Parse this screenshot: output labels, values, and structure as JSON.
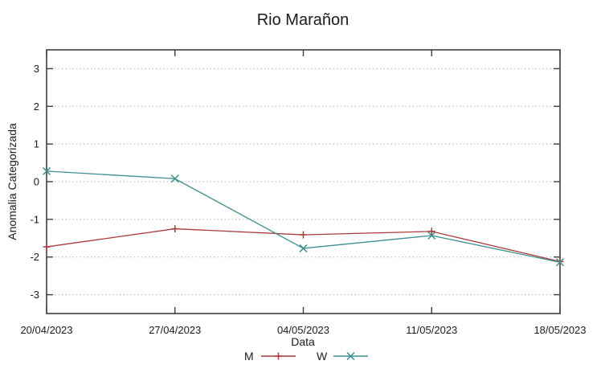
{
  "title": "Rio Marañon",
  "chart_data": {
    "type": "line",
    "title": "Rio Marañon",
    "xlabel": "Data",
    "ylabel": "Anomalia Categorizada",
    "categories": [
      "20/04/2023",
      "27/04/2023",
      "04/05/2023",
      "11/05/2023",
      "18/05/2023"
    ],
    "series": [
      {
        "name": "M",
        "color": "#a93c3a",
        "marker": "plus",
        "values": [
          -1.73,
          -1.25,
          -1.41,
          -1.32,
          -2.12
        ]
      },
      {
        "name": "W",
        "color": "#3d8e8e",
        "marker": "x",
        "values": [
          0.28,
          0.08,
          -1.77,
          -1.43,
          -2.14
        ]
      }
    ],
    "ylim": [
      -3.5,
      3.5
    ],
    "yticks": [
      3,
      2,
      1,
      0,
      -1,
      -2,
      -3
    ],
    "grid": true,
    "grid_style": "dotted",
    "legend_position": "bottom-center"
  },
  "style_colors": {
    "border": "#3f3f3f",
    "gridline": "#b5b5b5",
    "text": "#1b1b1b",
    "background": "#ffffff"
  }
}
